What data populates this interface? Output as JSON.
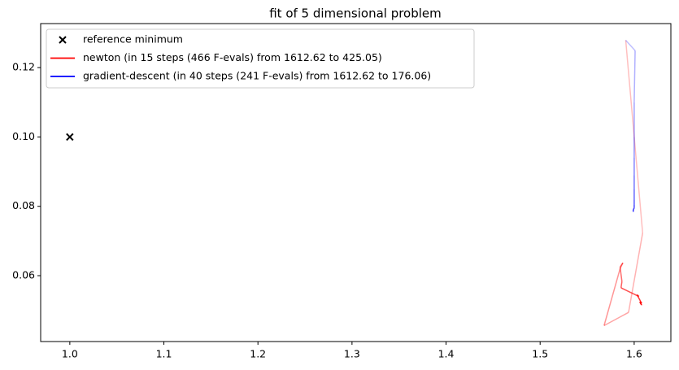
{
  "chart_data": {
    "type": "line",
    "title": "fit of 5 dimensional problem",
    "xlim": [
      0.969,
      1.639
    ],
    "ylim": [
      0.041,
      0.1327
    ],
    "xticks": [
      {
        "value": 1.0,
        "label": "1.0"
      },
      1.1,
      1.2,
      1.3,
      1.4,
      1.5,
      1.6
    ],
    "yticks": [
      0.06,
      0.08,
      {
        "value": 0.1,
        "label": "0.10"
      },
      0.12
    ],
    "legend": "upper left",
    "reference": {
      "name": "reference minimum",
      "color": "#000000",
      "x": [
        1.0
      ],
      "y": [
        0.1
      ]
    },
    "series": [
      {
        "name": "newton (in 15 steps (466 F-evals) from 1612.62 to 425.05)",
        "color": "#ff0000",
        "x": [
          1.591,
          1.609,
          1.594,
          1.568,
          1.585,
          1.588,
          1.585,
          1.587,
          1.586,
          1.605,
          1.603,
          1.608,
          1.606,
          1.607,
          1.608,
          1.608
        ],
        "y": [
          0.1279,
          0.0723,
          0.0494,
          0.0456,
          0.062,
          0.0637,
          0.0625,
          0.0583,
          0.0565,
          0.054,
          0.0545,
          0.052,
          0.0525,
          0.0518,
          0.0516,
          0.0515
        ]
      },
      {
        "name": "gradient-descent (in 40 steps (241 F-evals) from 1612.62 to 176.06)",
        "color": "#0000ff",
        "x": [
          1.591,
          1.601,
          1.6,
          1.6,
          1.6,
          1.6,
          1.6,
          1.6,
          1.6,
          1.6,
          1.599,
          1.599,
          1.599,
          1.599,
          1.599
        ],
        "y": [
          0.1279,
          0.1249,
          0.11,
          0.1,
          0.094,
          0.089,
          0.085,
          0.082,
          0.0805,
          0.0795,
          0.079,
          0.0787,
          0.0785,
          0.0784,
          0.0784
        ]
      }
    ]
  }
}
